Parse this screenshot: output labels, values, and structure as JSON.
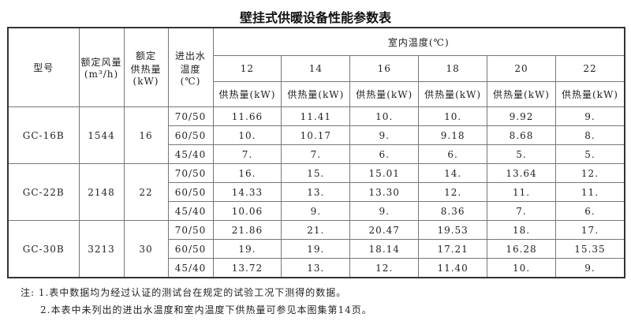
{
  "title": "壁挂式供暖设备性能参数表",
  "headers": {
    "model": "型号",
    "airflow": "额定风量\n(m³/h)",
    "heat": "额定\n供热量\n(kW)",
    "water": "进出水\n温度\n(℃)",
    "indoor": "室内温度(℃)",
    "temps": [
      "12",
      "14",
      "16",
      "18",
      "20",
      "22"
    ],
    "unit": "供热量(kW)"
  },
  "groups": [
    {
      "model": "GC-16B",
      "airflow": "1544",
      "heat": "16",
      "rows": [
        {
          "water": "70/50",
          "values": [
            "11.66",
            "11.41",
            "10.",
            "10.",
            "9.92",
            "9."
          ]
        },
        {
          "water": "60/50",
          "values": [
            "10.",
            "10.17",
            "9.",
            "9.18",
            "8.68",
            "8."
          ]
        },
        {
          "water": "45/40",
          "values": [
            "7.",
            "7.",
            "6.",
            "6.",
            "5.",
            "5."
          ]
        }
      ]
    },
    {
      "model": "GC-22B",
      "airflow": "2148",
      "heat": "22",
      "rows": [
        {
          "water": "70/50",
          "values": [
            "16.",
            "15.",
            "15.01",
            "14.",
            "13.64",
            "12."
          ]
        },
        {
          "water": "60/50",
          "values": [
            "14.33",
            "13.",
            "13.30",
            "12.",
            "11.",
            "11."
          ]
        },
        {
          "water": "45/40",
          "values": [
            "10.06",
            "9.",
            "9.",
            "8.36",
            "7.",
            "6."
          ]
        }
      ]
    },
    {
      "model": "GC-30B",
      "airflow": "3213",
      "heat": "30",
      "rows": [
        {
          "water": "70/50",
          "values": [
            "21.86",
            "21.",
            "20.47",
            "19.53",
            "18.",
            "17."
          ]
        },
        {
          "water": "60/50",
          "values": [
            "19.",
            "19.",
            "18.14",
            "17.21",
            "16.28",
            "15.35"
          ]
        },
        {
          "water": "45/40",
          "values": [
            "13.72",
            "13.",
            "12.",
            "11.40",
            "10.",
            "9."
          ]
        }
      ]
    }
  ],
  "notes": [
    "注: 1.表中数据均为经过认证的测试台在规定的试验工况下测得的数据。",
    "2.本表中未列出的进出水温度和室内温度下供热量可参见本图集第14页。"
  ]
}
